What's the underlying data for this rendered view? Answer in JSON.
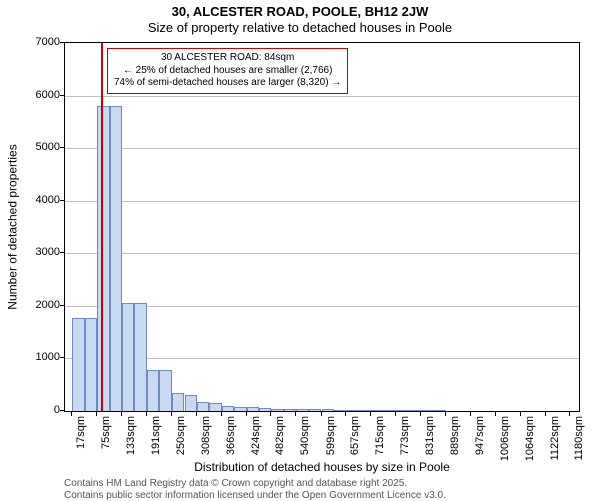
{
  "title_main": "30, ALCESTER ROAD, POOLE, BH12 2JW",
  "title_sub": "Size of property relative to detached houses in Poole",
  "ylabel": "Number of detached properties",
  "xlabel": "Distribution of detached houses by size in Poole",
  "chart": {
    "type": "histogram",
    "background_color": "#ffffff",
    "grid_color": "#bfbfbf",
    "axis_color": "#000000",
    "bar_fill": "#c9d9f2",
    "bar_stroke": "#6b8bc7",
    "marker_color": "#cc0000",
    "marker_x": 84,
    "xlim": [
      0,
      1200
    ],
    "ylim": [
      0,
      7000
    ],
    "yticks": [
      0,
      1000,
      2000,
      3000,
      4000,
      5000,
      6000,
      7000
    ],
    "xticks": [
      17,
      75,
      133,
      191,
      250,
      308,
      366,
      424,
      482,
      540,
      599,
      657,
      715,
      773,
      831,
      889,
      947,
      1006,
      1064,
      1122,
      1180
    ],
    "xtick_labels": [
      "17sqm",
      "75sqm",
      "133sqm",
      "191sqm",
      "250sqm",
      "308sqm",
      "366sqm",
      "424sqm",
      "482sqm",
      "540sqm",
      "599sqm",
      "657sqm",
      "715sqm",
      "773sqm",
      "831sqm",
      "889sqm",
      "947sqm",
      "1006sqm",
      "1064sqm",
      "1122sqm",
      "1180sqm"
    ],
    "bin_width": 29,
    "bins": [
      {
        "x": 17,
        "count": 1760
      },
      {
        "x": 46,
        "count": 1760
      },
      {
        "x": 75,
        "count": 5800
      },
      {
        "x": 104,
        "count": 5800
      },
      {
        "x": 133,
        "count": 2050
      },
      {
        "x": 162,
        "count": 2050
      },
      {
        "x": 191,
        "count": 780
      },
      {
        "x": 220,
        "count": 780
      },
      {
        "x": 250,
        "count": 340
      },
      {
        "x": 279,
        "count": 310
      },
      {
        "x": 308,
        "count": 170
      },
      {
        "x": 337,
        "count": 145
      },
      {
        "x": 366,
        "count": 100
      },
      {
        "x": 395,
        "count": 85
      },
      {
        "x": 424,
        "count": 70
      },
      {
        "x": 453,
        "count": 60
      },
      {
        "x": 482,
        "count": 45
      },
      {
        "x": 511,
        "count": 45
      },
      {
        "x": 540,
        "count": 35
      },
      {
        "x": 569,
        "count": 30
      },
      {
        "x": 599,
        "count": 30
      },
      {
        "x": 628,
        "count": 25
      },
      {
        "x": 657,
        "count": 22
      },
      {
        "x": 686,
        "count": 20
      },
      {
        "x": 715,
        "count": 18
      },
      {
        "x": 744,
        "count": 15
      },
      {
        "x": 773,
        "count": 14
      },
      {
        "x": 802,
        "count": 12
      },
      {
        "x": 831,
        "count": 10
      },
      {
        "x": 860,
        "count": 10
      },
      {
        "x": 889,
        "count": 8
      },
      {
        "x": 918,
        "count": 8
      },
      {
        "x": 947,
        "count": 7
      },
      {
        "x": 976,
        "count": 6
      },
      {
        "x": 1006,
        "count": 6
      },
      {
        "x": 1035,
        "count": 5
      },
      {
        "x": 1064,
        "count": 5
      },
      {
        "x": 1093,
        "count": 4
      },
      {
        "x": 1122,
        "count": 4
      },
      {
        "x": 1151,
        "count": 3
      },
      {
        "x": 1180,
        "count": 3
      }
    ]
  },
  "annotation": {
    "line1": "30 ALCESTER ROAD: 84sqm",
    "line2": "← 25% of detached houses are smaller (2,766)",
    "line3": "74% of semi-detached houses are larger (8,320) →",
    "border_color": "#cc0000",
    "fontsize": 10
  },
  "footer": {
    "line1": "Contains HM Land Registry data © Crown copyright and database right 2025.",
    "line2": "Contains public sector information licensed under the Open Government Licence v3.0.",
    "color": "#555555"
  }
}
